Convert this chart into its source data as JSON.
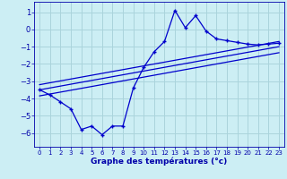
{
  "xlabel": "Graphe des températures (°c)",
  "background_color": "#cceef4",
  "grid_color": "#aad4dc",
  "line_color": "#0000cc",
  "xlim": [
    -0.5,
    23.5
  ],
  "ylim": [
    -6.8,
    1.6
  ],
  "yticks": [
    1,
    0,
    -1,
    -2,
    -3,
    -4,
    -5,
    -6
  ],
  "xticks": [
    0,
    1,
    2,
    3,
    4,
    5,
    6,
    7,
    8,
    9,
    10,
    11,
    12,
    13,
    14,
    15,
    16,
    17,
    18,
    19,
    20,
    21,
    22,
    23
  ],
  "main_line_x": [
    0,
    1,
    2,
    3,
    4,
    5,
    6,
    7,
    8,
    9,
    10,
    11,
    12,
    13,
    14,
    15,
    16,
    17,
    18,
    19,
    20,
    21,
    22,
    23
  ],
  "main_line_y": [
    -3.5,
    -3.8,
    -4.2,
    -4.6,
    -5.8,
    -5.6,
    -6.1,
    -5.6,
    -5.6,
    -3.4,
    -2.2,
    -1.3,
    -0.7,
    1.1,
    0.1,
    0.8,
    -0.1,
    -0.55,
    -0.65,
    -0.75,
    -0.85,
    -0.9,
    -0.85,
    -0.8
  ],
  "line2_x": [
    0,
    23
  ],
  "line2_y": [
    -3.2,
    -0.7
  ],
  "line3_x": [
    0,
    23
  ],
  "line3_y": [
    -3.5,
    -1.0
  ],
  "line4_x": [
    0,
    23
  ],
  "line4_y": [
    -3.85,
    -1.35
  ]
}
